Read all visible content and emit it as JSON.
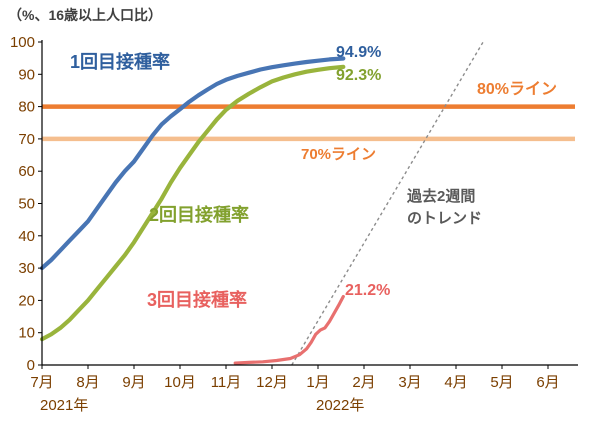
{
  "title": "（%、16歳以上人口比）",
  "chart_data": {
    "type": "line",
    "ylabel": "（%、16歳以上人口比）",
    "ylim": [
      0,
      100
    ],
    "yticks": [
      0,
      10,
      20,
      30,
      40,
      50,
      60,
      70,
      80,
      90,
      100
    ],
    "grid": false,
    "x_axis": {
      "months": [
        "7月",
        "8月",
        "9月",
        "10月",
        "11月",
        "12月",
        "1月",
        "2月",
        "3月",
        "4月",
        "5月",
        "6月"
      ],
      "year_labels": [
        {
          "label": "2021年",
          "month_index": 0
        },
        {
          "label": "2022年",
          "month_index": 6
        }
      ]
    },
    "series": [
      {
        "name": "1回目接種率",
        "end_label": "94.9%",
        "final_value": 94.9,
        "color": "#4875B4",
        "text_color": "#2F5F9E",
        "stroke_width": 4.2,
        "points": [
          [
            0,
            30
          ],
          [
            0.2,
            32.5
          ],
          [
            0.4,
            35.5
          ],
          [
            0.6,
            38.5
          ],
          [
            0.8,
            41.5
          ],
          [
            1,
            44.5
          ],
          [
            1.2,
            48.5
          ],
          [
            1.4,
            52.5
          ],
          [
            1.6,
            56.5
          ],
          [
            1.8,
            60
          ],
          [
            2,
            63
          ],
          [
            2.2,
            67
          ],
          [
            2.4,
            71
          ],
          [
            2.6,
            74.5
          ],
          [
            2.8,
            77
          ],
          [
            3,
            79.2
          ],
          [
            3.2,
            81.5
          ],
          [
            3.4,
            83.5
          ],
          [
            3.6,
            85.3
          ],
          [
            3.8,
            87
          ],
          [
            4,
            88.3
          ],
          [
            4.25,
            89.5
          ],
          [
            4.5,
            90.5
          ],
          [
            4.75,
            91.5
          ],
          [
            5,
            92.2
          ],
          [
            5.25,
            92.8
          ],
          [
            5.5,
            93.3
          ],
          [
            5.75,
            93.8
          ],
          [
            6,
            94.2
          ],
          [
            6.25,
            94.6
          ],
          [
            6.55,
            94.9
          ]
        ]
      },
      {
        "name": "2回目接種率",
        "end_label": "92.3%",
        "final_value": 92.3,
        "color": "#99B43C",
        "text_color": "#82A12E",
        "stroke_width": 4.2,
        "points": [
          [
            0,
            8
          ],
          [
            0.2,
            9.5
          ],
          [
            0.4,
            11.5
          ],
          [
            0.6,
            14
          ],
          [
            0.8,
            17
          ],
          [
            1,
            20
          ],
          [
            1.2,
            23.5
          ],
          [
            1.4,
            27
          ],
          [
            1.6,
            30.5
          ],
          [
            1.8,
            34
          ],
          [
            2,
            38
          ],
          [
            2.2,
            42.5
          ],
          [
            2.4,
            47
          ],
          [
            2.6,
            51.5
          ],
          [
            2.8,
            56.5
          ],
          [
            3,
            61
          ],
          [
            3.2,
            65
          ],
          [
            3.4,
            69
          ],
          [
            3.6,
            72.5
          ],
          [
            3.8,
            76
          ],
          [
            4,
            79
          ],
          [
            4.25,
            81.8
          ],
          [
            4.5,
            84
          ],
          [
            4.75,
            86
          ],
          [
            5,
            87.8
          ],
          [
            5.25,
            89
          ],
          [
            5.5,
            90
          ],
          [
            5.75,
            90.8
          ],
          [
            6,
            91.4
          ],
          [
            6.25,
            91.9
          ],
          [
            6.55,
            92.3
          ]
        ]
      },
      {
        "name": "3回目接種率",
        "end_label": "21.2%",
        "final_value": 21.2,
        "color": "#E8706F",
        "text_color": "#E8615F",
        "stroke_width": 3.2,
        "points": [
          [
            4.2,
            0.6
          ],
          [
            4.5,
            0.8
          ],
          [
            4.8,
            1
          ],
          [
            5.1,
            1.4
          ],
          [
            5.4,
            2
          ],
          [
            5.6,
            3.2
          ],
          [
            5.75,
            5
          ],
          [
            5.85,
            7
          ],
          [
            5.95,
            9.5
          ],
          [
            6.05,
            10.8
          ],
          [
            6.15,
            11.5
          ],
          [
            6.25,
            13.5
          ],
          [
            6.35,
            16
          ],
          [
            6.45,
            18.5
          ],
          [
            6.55,
            21.2
          ]
        ]
      }
    ],
    "reference_lines": [
      {
        "label": "80%ライン",
        "value": 80,
        "color": "#ED7D31",
        "label_color": "#ED7D31"
      },
      {
        "label": "70%ライン",
        "value": 70,
        "color": "#F5BE8E",
        "label_color": "#ED7D31"
      }
    ],
    "trend_line": {
      "label_lines": [
        "過去2週間",
        "のトレンド"
      ],
      "label_color": "#595959",
      "color": "#8C8C8C",
      "points": [
        [
          5.43,
          0
        ],
        [
          9.59,
          100
        ]
      ]
    }
  }
}
